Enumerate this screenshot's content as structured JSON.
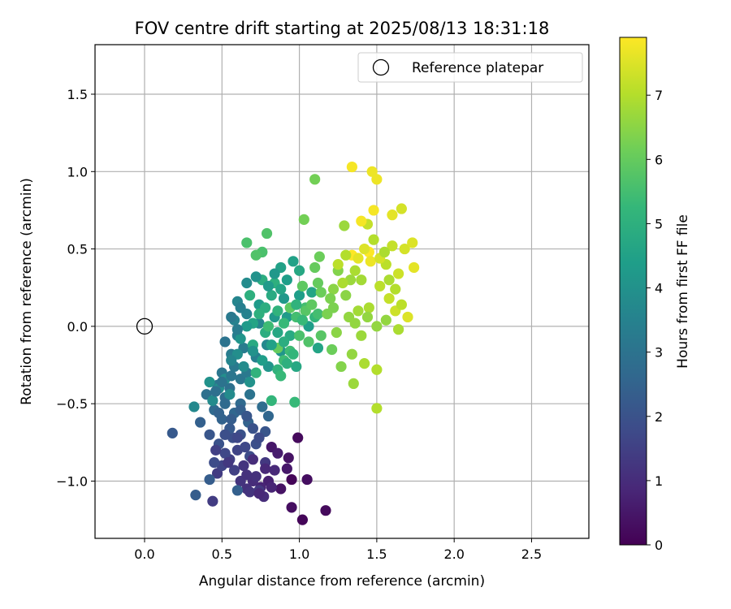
{
  "chart_data": {
    "type": "scatter",
    "title": "FOV centre drift starting at 2025/08/13 18:31:18",
    "xlabel": "Angular distance from reference (arcmin)",
    "ylabel": "Rotation from reference (arcmin)",
    "xlim": [
      -0.32,
      2.87
    ],
    "ylim": [
      -1.37,
      1.82
    ],
    "xticks": [
      "0.0",
      "0.5",
      "1.0",
      "1.5",
      "2.0",
      "2.5"
    ],
    "xtick_values": [
      0.0,
      0.5,
      1.0,
      1.5,
      2.0,
      2.5
    ],
    "yticks": [
      "−1.0",
      "−0.5",
      "0.0",
      "0.5",
      "1.0",
      "1.5"
    ],
    "ytick_values": [
      -1.0,
      -0.5,
      0.0,
      0.5,
      1.0,
      1.5
    ],
    "grid": true,
    "legend": {
      "placement": "upper-right",
      "entries": [
        "Reference platepar"
      ]
    },
    "reference_point": {
      "x": 0.0,
      "y": 0.0
    },
    "colorbar": {
      "label": "Hours from first FF file",
      "min": 0,
      "max": 7.9,
      "ticks": [
        "0",
        "1",
        "2",
        "3",
        "4",
        "5",
        "6",
        "7"
      ],
      "tick_values": [
        0,
        1,
        2,
        3,
        4,
        5,
        6,
        7
      ],
      "colormap": [
        "#440154",
        "#482878",
        "#3e4a89",
        "#31688e",
        "#26828e",
        "#1f9e89",
        "#35b779",
        "#6ece58",
        "#b5de2b",
        "#fde725"
      ]
    },
    "points": [
      {
        "x": 0.95,
        "y": -0.99,
        "c": 0.1
      },
      {
        "x": 1.02,
        "y": -1.25,
        "c": 0.1
      },
      {
        "x": 0.99,
        "y": -0.72,
        "c": 0.2
      },
      {
        "x": 1.17,
        "y": -1.19,
        "c": 0.2
      },
      {
        "x": 0.95,
        "y": -1.17,
        "c": 0.3
      },
      {
        "x": 1.05,
        "y": -0.99,
        "c": 0.3
      },
      {
        "x": 0.88,
        "y": -1.05,
        "c": 0.4
      },
      {
        "x": 0.93,
        "y": -0.85,
        "c": 0.4
      },
      {
        "x": 0.82,
        "y": -0.78,
        "c": 0.5
      },
      {
        "x": 0.92,
        "y": -0.92,
        "c": 0.5
      },
      {
        "x": 0.86,
        "y": -0.82,
        "c": 0.6
      },
      {
        "x": 0.8,
        "y": -1.0,
        "c": 0.7
      },
      {
        "x": 0.75,
        "y": -1.04,
        "c": 0.8
      },
      {
        "x": 0.84,
        "y": -0.93,
        "c": 0.9
      },
      {
        "x": 0.7,
        "y": -1.0,
        "c": 1.0
      },
      {
        "x": 0.77,
        "y": -1.1,
        "c": 1.0
      },
      {
        "x": 0.66,
        "y": -1.05,
        "c": 1.1
      },
      {
        "x": 0.72,
        "y": -0.97,
        "c": 1.1
      },
      {
        "x": 0.68,
        "y": -1.07,
        "c": 1.2
      },
      {
        "x": 0.62,
        "y": -1.0,
        "c": 1.2
      },
      {
        "x": 0.74,
        "y": -1.06,
        "c": 1.3
      },
      {
        "x": 0.78,
        "y": -0.88,
        "c": 1.3
      },
      {
        "x": 0.44,
        "y": -1.13,
        "c": 1.4
      },
      {
        "x": 0.47,
        "y": -0.95,
        "c": 1.4
      },
      {
        "x": 0.58,
        "y": -0.93,
        "c": 1.5
      },
      {
        "x": 0.55,
        "y": -0.86,
        "c": 1.5
      },
      {
        "x": 0.5,
        "y": -0.9,
        "c": 1.6
      },
      {
        "x": 0.6,
        "y": -0.8,
        "c": 1.6
      },
      {
        "x": 0.52,
        "y": -0.82,
        "c": 1.7
      },
      {
        "x": 0.65,
        "y": -0.78,
        "c": 1.7
      },
      {
        "x": 0.45,
        "y": -0.88,
        "c": 1.8
      },
      {
        "x": 0.68,
        "y": -0.84,
        "c": 1.8
      },
      {
        "x": 0.72,
        "y": -0.76,
        "c": 1.9
      },
      {
        "x": 0.57,
        "y": -0.72,
        "c": 1.9
      },
      {
        "x": 0.48,
        "y": -0.76,
        "c": 2.0
      },
      {
        "x": 0.62,
        "y": -0.7,
        "c": 2.0
      },
      {
        "x": 0.42,
        "y": -0.7,
        "c": 2.1
      },
      {
        "x": 0.78,
        "y": -0.68,
        "c": 2.1
      },
      {
        "x": 0.55,
        "y": -0.66,
        "c": 2.2
      },
      {
        "x": 0.18,
        "y": -0.69,
        "c": 2.2
      },
      {
        "x": 0.33,
        "y": -1.09,
        "c": 2.3
      },
      {
        "x": 0.42,
        "y": -0.99,
        "c": 2.3
      },
      {
        "x": 0.6,
        "y": -1.06,
        "c": 2.4
      },
      {
        "x": 0.36,
        "y": -0.62,
        "c": 2.4
      },
      {
        "x": 0.5,
        "y": -0.6,
        "c": 2.5
      },
      {
        "x": 0.67,
        "y": -0.62,
        "c": 2.5
      },
      {
        "x": 0.8,
        "y": -0.58,
        "c": 2.6
      },
      {
        "x": 0.58,
        "y": -0.56,
        "c": 2.6
      },
      {
        "x": 0.45,
        "y": -0.54,
        "c": 2.7
      },
      {
        "x": 0.62,
        "y": -0.5,
        "c": 2.7
      },
      {
        "x": 0.76,
        "y": -0.52,
        "c": 2.8
      },
      {
        "x": 0.52,
        "y": -0.46,
        "c": 2.8
      },
      {
        "x": 0.4,
        "y": -0.44,
        "c": 2.9
      },
      {
        "x": 0.55,
        "y": -0.4,
        "c": 2.9
      },
      {
        "x": 0.68,
        "y": -0.44,
        "c": 3.0
      },
      {
        "x": 0.47,
        "y": -0.38,
        "c": 3.0
      },
      {
        "x": 0.62,
        "y": -0.34,
        "c": 3.1
      },
      {
        "x": 0.5,
        "y": -0.3,
        "c": 3.1
      },
      {
        "x": 0.58,
        "y": -0.26,
        "c": 3.2
      },
      {
        "x": 0.66,
        "y": -0.3,
        "c": 3.2
      },
      {
        "x": 0.56,
        "y": -0.18,
        "c": 3.3
      },
      {
        "x": 0.64,
        "y": -0.14,
        "c": 3.3
      },
      {
        "x": 0.6,
        "y": -0.06,
        "c": 3.4
      },
      {
        "x": 0.72,
        "y": -0.2,
        "c": 3.4
      },
      {
        "x": 0.58,
        "y": 0.04,
        "c": 3.5
      },
      {
        "x": 0.66,
        "y": 0.08,
        "c": 3.5
      },
      {
        "x": 0.6,
        "y": 0.16,
        "c": 3.6
      },
      {
        "x": 0.74,
        "y": 0.02,
        "c": 3.6
      },
      {
        "x": 0.79,
        "y": -0.12,
        "c": 3.7
      },
      {
        "x": 0.32,
        "y": -0.52,
        "c": 3.7
      },
      {
        "x": 0.44,
        "y": -0.48,
        "c": 3.8
      },
      {
        "x": 0.55,
        "y": -0.44,
        "c": 3.8
      },
      {
        "x": 0.52,
        "y": -0.34,
        "c": 3.9
      },
      {
        "x": 0.48,
        "y": -0.4,
        "c": 3.9
      },
      {
        "x": 0.42,
        "y": -0.36,
        "c": 4.0
      },
      {
        "x": 0.68,
        "y": -0.36,
        "c": 4.0
      },
      {
        "x": 0.8,
        "y": -0.26,
        "c": 4.1
      },
      {
        "x": 0.88,
        "y": -0.16,
        "c": 4.1
      },
      {
        "x": 0.9,
        "y": 0.18,
        "c": 4.2
      },
      {
        "x": 0.84,
        "y": 0.06,
        "c": 4.2
      },
      {
        "x": 0.92,
        "y": 0.06,
        "c": 4.3
      },
      {
        "x": 0.74,
        "y": 0.14,
        "c": 4.3
      },
      {
        "x": 1.0,
        "y": 0.2,
        "c": 4.4
      },
      {
        "x": 1.06,
        "y": 0.0,
        "c": 4.4
      },
      {
        "x": 0.96,
        "y": 0.42,
        "c": 4.5
      },
      {
        "x": 0.88,
        "y": 0.38,
        "c": 4.5
      },
      {
        "x": 1.08,
        "y": 0.22,
        "c": 4.6
      },
      {
        "x": 1.12,
        "y": -0.14,
        "c": 4.6
      },
      {
        "x": 0.98,
        "y": -0.26,
        "c": 4.7
      },
      {
        "x": 1.0,
        "y": 0.36,
        "c": 4.7
      },
      {
        "x": 0.94,
        "y": -0.06,
        "c": 4.8
      },
      {
        "x": 0.7,
        "y": -0.12,
        "c": 4.8
      },
      {
        "x": 0.78,
        "y": -0.04,
        "c": 4.9
      },
      {
        "x": 0.76,
        "y": 0.3,
        "c": 4.9
      },
      {
        "x": 0.84,
        "y": 0.28,
        "c": 5.0
      },
      {
        "x": 0.68,
        "y": 0.2,
        "c": 5.0
      },
      {
        "x": 0.72,
        "y": -0.3,
        "c": 5.1
      },
      {
        "x": 0.86,
        "y": -0.28,
        "c": 5.1
      },
      {
        "x": 1.1,
        "y": 0.06,
        "c": 5.2
      },
      {
        "x": 0.82,
        "y": -0.48,
        "c": 5.2
      },
      {
        "x": 0.97,
        "y": -0.49,
        "c": 5.3
      },
      {
        "x": 0.88,
        "y": -0.32,
        "c": 5.3
      },
      {
        "x": 0.8,
        "y": 0.0,
        "c": 5.4
      },
      {
        "x": 0.9,
        "y": -0.22,
        "c": 5.4
      },
      {
        "x": 1.04,
        "y": 0.12,
        "c": 5.5
      },
      {
        "x": 1.12,
        "y": 0.08,
        "c": 5.5
      },
      {
        "x": 0.66,
        "y": 0.54,
        "c": 5.6
      },
      {
        "x": 0.76,
        "y": 0.48,
        "c": 5.6
      },
      {
        "x": 0.79,
        "y": 0.6,
        "c": 5.7
      },
      {
        "x": 0.72,
        "y": 0.46,
        "c": 5.7
      },
      {
        "x": 1.04,
        "y": 0.1,
        "c": 5.8
      },
      {
        "x": 1.14,
        "y": -0.06,
        "c": 5.8
      },
      {
        "x": 1.02,
        "y": 0.26,
        "c": 5.9
      },
      {
        "x": 0.94,
        "y": 0.12,
        "c": 5.9
      },
      {
        "x": 0.86,
        "y": -0.14,
        "c": 6.0
      },
      {
        "x": 1.1,
        "y": 0.38,
        "c": 6.0
      },
      {
        "x": 1.21,
        "y": -0.15,
        "c": 6.1
      },
      {
        "x": 1.13,
        "y": 0.45,
        "c": 6.1
      },
      {
        "x": 1.03,
        "y": 0.69,
        "c": 6.2
      },
      {
        "x": 1.1,
        "y": 0.95,
        "c": 6.2
      },
      {
        "x": 1.18,
        "y": 0.08,
        "c": 6.3
      },
      {
        "x": 1.22,
        "y": 0.12,
        "c": 6.3
      },
      {
        "x": 1.27,
        "y": -0.26,
        "c": 6.4
      },
      {
        "x": 1.25,
        "y": 0.36,
        "c": 6.4
      },
      {
        "x": 1.3,
        "y": 0.2,
        "c": 6.5
      },
      {
        "x": 1.24,
        "y": -0.04,
        "c": 6.5
      },
      {
        "x": 1.32,
        "y": 0.06,
        "c": 6.6
      },
      {
        "x": 1.34,
        "y": -0.18,
        "c": 6.6
      },
      {
        "x": 1.29,
        "y": 0.65,
        "c": 6.7
      },
      {
        "x": 1.35,
        "y": -0.37,
        "c": 6.7
      },
      {
        "x": 1.4,
        "y": 0.3,
        "c": 6.8
      },
      {
        "x": 1.38,
        "y": 0.1,
        "c": 6.8
      },
      {
        "x": 1.42,
        "y": -0.24,
        "c": 6.9
      },
      {
        "x": 1.45,
        "y": 0.12,
        "c": 6.9
      },
      {
        "x": 1.5,
        "y": -0.28,
        "c": 7.0
      },
      {
        "x": 1.5,
        "y": -0.53,
        "c": 7.0
      },
      {
        "x": 1.52,
        "y": 0.26,
        "c": 7.1
      },
      {
        "x": 1.56,
        "y": 0.4,
        "c": 7.1
      },
      {
        "x": 1.58,
        "y": 0.18,
        "c": 7.2
      },
      {
        "x": 1.6,
        "y": 0.52,
        "c": 7.2
      },
      {
        "x": 1.62,
        "y": 0.1,
        "c": 7.3
      },
      {
        "x": 1.64,
        "y": 0.34,
        "c": 7.3
      },
      {
        "x": 1.66,
        "y": 0.76,
        "c": 7.4
      },
      {
        "x": 1.68,
        "y": 0.5,
        "c": 7.4
      },
      {
        "x": 1.7,
        "y": 0.06,
        "c": 7.5
      },
      {
        "x": 1.73,
        "y": 0.54,
        "c": 7.5
      },
      {
        "x": 1.74,
        "y": 0.38,
        "c": 7.6
      },
      {
        "x": 1.6,
        "y": 0.72,
        "c": 7.6
      },
      {
        "x": 1.47,
        "y": 1.0,
        "c": 7.7
      },
      {
        "x": 1.5,
        "y": 0.95,
        "c": 7.7
      },
      {
        "x": 1.34,
        "y": 1.03,
        "c": 7.8
      },
      {
        "x": 1.48,
        "y": 0.75,
        "c": 7.8
      },
      {
        "x": 1.34,
        "y": 0.46,
        "c": 7.9
      },
      {
        "x": 1.45,
        "y": 0.48,
        "c": 7.9
      },
      {
        "x": 1.38,
        "y": 0.44,
        "c": 7.6
      },
      {
        "x": 1.42,
        "y": 0.5,
        "c": 7.5
      },
      {
        "x": 1.46,
        "y": 0.42,
        "c": 7.7
      },
      {
        "x": 1.52,
        "y": 0.44,
        "c": 7.4
      },
      {
        "x": 1.44,
        "y": 0.66,
        "c": 7.2
      },
      {
        "x": 1.4,
        "y": 0.68,
        "c": 7.8
      },
      {
        "x": 1.48,
        "y": 0.56,
        "c": 7.0
      },
      {
        "x": 1.55,
        "y": 0.48,
        "c": 6.9
      },
      {
        "x": 1.58,
        "y": 0.3,
        "c": 6.9
      },
      {
        "x": 1.62,
        "y": 0.24,
        "c": 7.0
      },
      {
        "x": 1.66,
        "y": 0.14,
        "c": 7.1
      },
      {
        "x": 1.64,
        "y": -0.02,
        "c": 6.9
      },
      {
        "x": 1.56,
        "y": 0.04,
        "c": 6.6
      },
      {
        "x": 1.5,
        "y": 0.0,
        "c": 6.6
      },
      {
        "x": 1.44,
        "y": 0.06,
        "c": 6.6
      },
      {
        "x": 1.4,
        "y": -0.06,
        "c": 6.7
      },
      {
        "x": 1.36,
        "y": 0.02,
        "c": 6.6
      },
      {
        "x": 1.33,
        "y": 0.3,
        "c": 6.7
      },
      {
        "x": 1.36,
        "y": 0.36,
        "c": 6.9
      },
      {
        "x": 1.3,
        "y": 0.46,
        "c": 7.0
      },
      {
        "x": 1.25,
        "y": 0.4,
        "c": 7.1
      },
      {
        "x": 1.28,
        "y": 0.28,
        "c": 6.9
      },
      {
        "x": 1.22,
        "y": 0.24,
        "c": 6.5
      },
      {
        "x": 1.2,
        "y": 0.18,
        "c": 6.3
      },
      {
        "x": 1.14,
        "y": 0.22,
        "c": 6.1
      },
      {
        "x": 1.08,
        "y": 0.14,
        "c": 5.9
      },
      {
        "x": 1.12,
        "y": 0.28,
        "c": 6.0
      },
      {
        "x": 1.06,
        "y": -0.1,
        "c": 5.7
      },
      {
        "x": 1.0,
        "y": -0.06,
        "c": 5.6
      },
      {
        "x": 0.98,
        "y": 0.06,
        "c": 5.5
      },
      {
        "x": 0.94,
        "y": -0.16,
        "c": 5.4
      },
      {
        "x": 0.9,
        "y": 0.02,
        "c": 5.3
      },
      {
        "x": 0.86,
        "y": 0.1,
        "c": 5.1
      },
      {
        "x": 0.82,
        "y": 0.2,
        "c": 4.8
      },
      {
        "x": 0.78,
        "y": 0.12,
        "c": 4.9
      },
      {
        "x": 0.74,
        "y": 0.08,
        "c": 5.0
      },
      {
        "x": 0.7,
        "y": 0.02,
        "c": 4.6
      },
      {
        "x": 0.66,
        "y": 0.0,
        "c": 4.3
      },
      {
        "x": 0.62,
        "y": -0.08,
        "c": 4.1
      },
      {
        "x": 0.6,
        "y": -0.18,
        "c": 3.9
      },
      {
        "x": 0.56,
        "y": -0.22,
        "c": 3.6
      },
      {
        "x": 0.64,
        "y": -0.26,
        "c": 3.8
      },
      {
        "x": 0.7,
        "y": -0.16,
        "c": 4.0
      },
      {
        "x": 0.76,
        "y": -0.22,
        "c": 4.4
      },
      {
        "x": 0.82,
        "y": -0.12,
        "c": 4.5
      },
      {
        "x": 0.86,
        "y": -0.04,
        "c": 4.7
      },
      {
        "x": 0.9,
        "y": -0.1,
        "c": 4.9
      },
      {
        "x": 0.92,
        "y": -0.24,
        "c": 5.0
      },
      {
        "x": 0.96,
        "y": -0.18,
        "c": 5.2
      },
      {
        "x": 0.98,
        "y": 0.14,
        "c": 5.1
      },
      {
        "x": 1.02,
        "y": 0.04,
        "c": 5.3
      },
      {
        "x": 0.88,
        "y": 0.24,
        "c": 4.6
      },
      {
        "x": 0.92,
        "y": 0.3,
        "c": 4.4
      },
      {
        "x": 0.84,
        "y": 0.34,
        "c": 4.2
      },
      {
        "x": 0.8,
        "y": 0.26,
        "c": 4.3
      },
      {
        "x": 0.72,
        "y": 0.32,
        "c": 4.0
      },
      {
        "x": 0.66,
        "y": 0.28,
        "c": 3.8
      },
      {
        "x": 0.62,
        "y": 0.12,
        "c": 3.4
      },
      {
        "x": 0.56,
        "y": 0.06,
        "c": 3.2
      },
      {
        "x": 0.6,
        "y": -0.02,
        "c": 3.3
      },
      {
        "x": 0.52,
        "y": -0.1,
        "c": 3.0
      },
      {
        "x": 0.56,
        "y": -0.32,
        "c": 3.1
      },
      {
        "x": 0.5,
        "y": -0.36,
        "c": 3.0
      },
      {
        "x": 0.46,
        "y": -0.42,
        "c": 2.9
      },
      {
        "x": 0.52,
        "y": -0.5,
        "c": 2.7
      },
      {
        "x": 0.48,
        "y": -0.56,
        "c": 2.5
      },
      {
        "x": 0.56,
        "y": -0.6,
        "c": 2.3
      },
      {
        "x": 0.62,
        "y": -0.54,
        "c": 2.4
      },
      {
        "x": 0.66,
        "y": -0.58,
        "c": 2.1
      },
      {
        "x": 0.7,
        "y": -0.66,
        "c": 2.0
      },
      {
        "x": 0.74,
        "y": -0.72,
        "c": 1.8
      },
      {
        "x": 0.6,
        "y": -0.72,
        "c": 1.7
      },
      {
        "x": 0.52,
        "y": -0.7,
        "c": 1.9
      },
      {
        "x": 0.46,
        "y": -0.8,
        "c": 1.5
      },
      {
        "x": 0.54,
        "y": -0.88,
        "c": 1.3
      },
      {
        "x": 0.64,
        "y": -0.9,
        "c": 1.2
      },
      {
        "x": 0.7,
        "y": -0.86,
        "c": 1.0
      },
      {
        "x": 0.78,
        "y": -0.92,
        "c": 0.9
      },
      {
        "x": 0.82,
        "y": -1.04,
        "c": 0.8
      },
      {
        "x": 0.74,
        "y": -1.08,
        "c": 0.9
      },
      {
        "x": 0.66,
        "y": -0.96,
        "c": 1.1
      }
    ]
  }
}
